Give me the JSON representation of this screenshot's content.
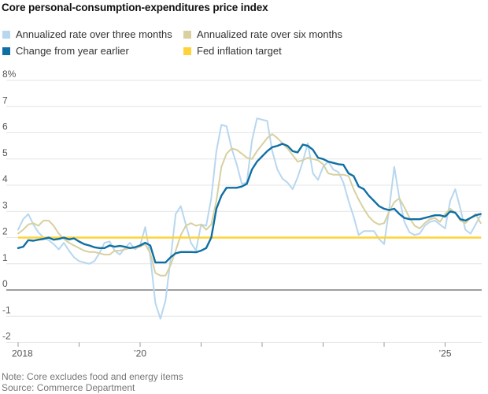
{
  "title": "Core personal-consumption-expenditures price index",
  "legend": {
    "items": [
      {
        "label": "Annualized rate over three months",
        "color": "#b7d7ef"
      },
      {
        "label": "Annualized rate over six months",
        "color": "#d8d0a0"
      },
      {
        "label": "Change from year earlier",
        "color": "#0f6fa3"
      },
      {
        "label": "Fed inflation target",
        "color": "#ffd337"
      }
    ]
  },
  "footer": {
    "note": "Note: Core excludes food and energy items",
    "source": "Source: Commerce Department"
  },
  "chart_data": {
    "type": "line",
    "title": "Core personal-consumption-expenditures price index",
    "frequency": "monthly",
    "x_start": "2018-01",
    "x_end": "2025-08",
    "ylim": [
      -2,
      8
    ],
    "grid": true,
    "legend_position": "top",
    "yticks": [
      {
        "value": 8,
        "label": "8%"
      },
      {
        "value": 7,
        "label": "7"
      },
      {
        "value": 6,
        "label": "6"
      },
      {
        "value": 5,
        "label": "5"
      },
      {
        "value": 4,
        "label": "4"
      },
      {
        "value": 3,
        "label": "3"
      },
      {
        "value": 2,
        "label": "2"
      },
      {
        "value": 1,
        "label": "1"
      },
      {
        "value": 0,
        "label": "0"
      },
      {
        "value": -1,
        "label": "-1"
      },
      {
        "value": -2,
        "label": "-2"
      }
    ],
    "xticks": [
      {
        "year": 2018,
        "label": "2018"
      },
      {
        "year": 2019,
        "label": ""
      },
      {
        "year": 2020,
        "label": "’20"
      },
      {
        "year": 2021,
        "label": ""
      },
      {
        "year": 2022,
        "label": ""
      },
      {
        "year": 2023,
        "label": ""
      },
      {
        "year": 2024,
        "label": ""
      },
      {
        "year": 2025,
        "label": "’25"
      }
    ],
    "series": [
      {
        "name": "Annualized rate over three months",
        "color": "#b7d7ef",
        "values": [
          2.3,
          2.7,
          2.9,
          2.5,
          2.2,
          2.0,
          1.9,
          1.75,
          1.55,
          1.8,
          1.5,
          1.25,
          1.1,
          1.05,
          1.0,
          1.1,
          1.4,
          1.8,
          1.85,
          1.5,
          1.35,
          1.6,
          1.8,
          1.55,
          1.7,
          2.4,
          1.3,
          -0.5,
          -1.1,
          -0.4,
          1.2,
          2.9,
          3.2,
          2.5,
          1.8,
          1.5,
          2.5,
          2.45,
          3.5,
          5.3,
          6.3,
          6.25,
          5.4,
          4.8,
          4.05,
          4.1,
          5.7,
          6.55,
          6.5,
          6.45,
          5.3,
          4.6,
          4.25,
          4.1,
          3.85,
          4.3,
          4.9,
          5.6,
          4.45,
          4.2,
          4.7,
          4.9,
          4.6,
          4.5,
          4.1,
          3.4,
          2.8,
          2.1,
          2.25,
          2.25,
          2.25,
          1.95,
          1.75,
          3.1,
          4.7,
          3.5,
          2.6,
          2.2,
          2.1,
          2.15,
          2.45,
          2.6,
          2.65,
          2.5,
          2.35,
          3.4,
          3.85,
          3.1,
          2.3,
          2.15,
          2.5,
          2.85
        ]
      },
      {
        "name": "Annualized rate over six months",
        "color": "#d8d0a0",
        "values": [
          2.15,
          2.3,
          2.5,
          2.55,
          2.45,
          2.65,
          2.65,
          2.45,
          2.15,
          1.95,
          1.8,
          1.7,
          1.6,
          1.5,
          1.45,
          1.45,
          1.4,
          1.35,
          1.35,
          1.5,
          1.5,
          1.55,
          1.6,
          1.6,
          1.65,
          1.75,
          1.4,
          0.65,
          0.55,
          0.55,
          0.95,
          1.5,
          2.1,
          2.45,
          2.55,
          2.45,
          2.5,
          2.3,
          2.5,
          3.4,
          4.7,
          5.2,
          5.4,
          5.35,
          5.2,
          5.05,
          5.0,
          5.3,
          5.55,
          5.8,
          5.95,
          5.8,
          5.6,
          5.4,
          5.15,
          4.9,
          4.95,
          5.05,
          5.0,
          4.95,
          4.8,
          4.45,
          4.4,
          4.4,
          4.4,
          4.35,
          3.85,
          3.45,
          3.1,
          2.8,
          2.6,
          2.5,
          2.55,
          3.0,
          3.35,
          3.5,
          3.15,
          2.75,
          2.45,
          2.35,
          2.55,
          2.7,
          2.75,
          2.6,
          2.9,
          3.1,
          2.95,
          2.65,
          2.55,
          2.75,
          2.9,
          2.55
        ]
      },
      {
        "name": "Change from year earlier",
        "color": "#0f6fa3",
        "values": [
          1.6,
          1.65,
          1.9,
          1.88,
          1.92,
          1.95,
          2.0,
          1.92,
          1.95,
          2.0,
          1.93,
          1.97,
          1.85,
          1.75,
          1.7,
          1.63,
          1.6,
          1.6,
          1.7,
          1.65,
          1.68,
          1.65,
          1.6,
          1.63,
          1.7,
          1.8,
          1.7,
          1.05,
          1.05,
          1.05,
          1.25,
          1.4,
          1.45,
          1.45,
          1.45,
          1.44,
          1.5,
          1.6,
          2.0,
          3.1,
          3.6,
          3.9,
          3.9,
          3.9,
          3.95,
          4.05,
          4.6,
          4.9,
          5.1,
          5.3,
          5.45,
          5.5,
          5.58,
          5.5,
          5.3,
          5.25,
          5.55,
          5.5,
          5.35,
          5.05,
          5.0,
          4.9,
          4.85,
          4.8,
          4.78,
          4.45,
          4.35,
          3.95,
          3.85,
          3.6,
          3.4,
          3.2,
          3.1,
          3.05,
          3.1,
          2.9,
          2.75,
          2.7,
          2.7,
          2.7,
          2.75,
          2.8,
          2.85,
          2.85,
          2.8,
          3.0,
          2.95,
          2.7,
          2.65,
          2.75,
          2.85,
          2.9
        ]
      },
      {
        "name": "Fed inflation target",
        "color": "#ffd337",
        "type": "constant",
        "value": 2
      }
    ]
  }
}
